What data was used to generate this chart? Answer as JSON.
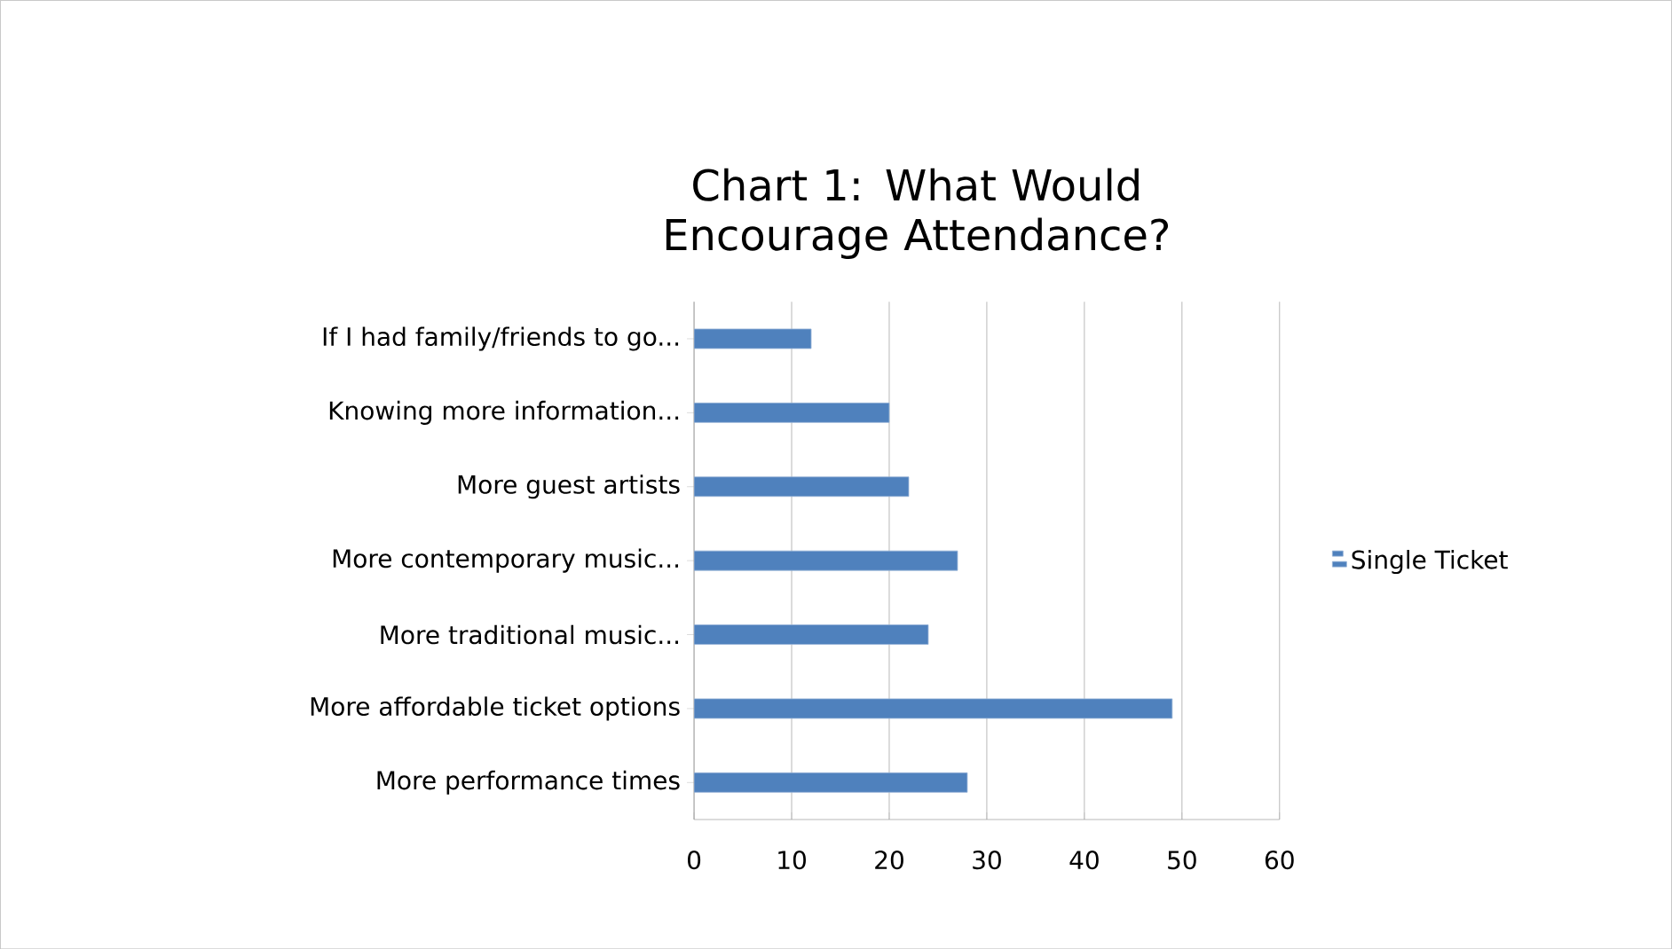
{
  "chart_data": {
    "type": "bar",
    "orientation": "horizontal",
    "title": "Chart 1: What Would Encourage Attendance?",
    "categories": [
      "If I had family/friends to go...",
      "Knowing more information...",
      "More guest artists",
      "More contemporary music...",
      "More traditional music...",
      "More affordable ticket options",
      "More performance times"
    ],
    "series": [
      {
        "name": "Single Ticket",
        "color": "#4f81bd",
        "values": [
          12,
          20,
          22,
          27,
          24,
          49,
          28
        ]
      }
    ],
    "xlim": [
      0,
      60
    ],
    "xticks": [
      0,
      10,
      20,
      30,
      40,
      50,
      60
    ],
    "grid": "x",
    "legend": "right"
  }
}
